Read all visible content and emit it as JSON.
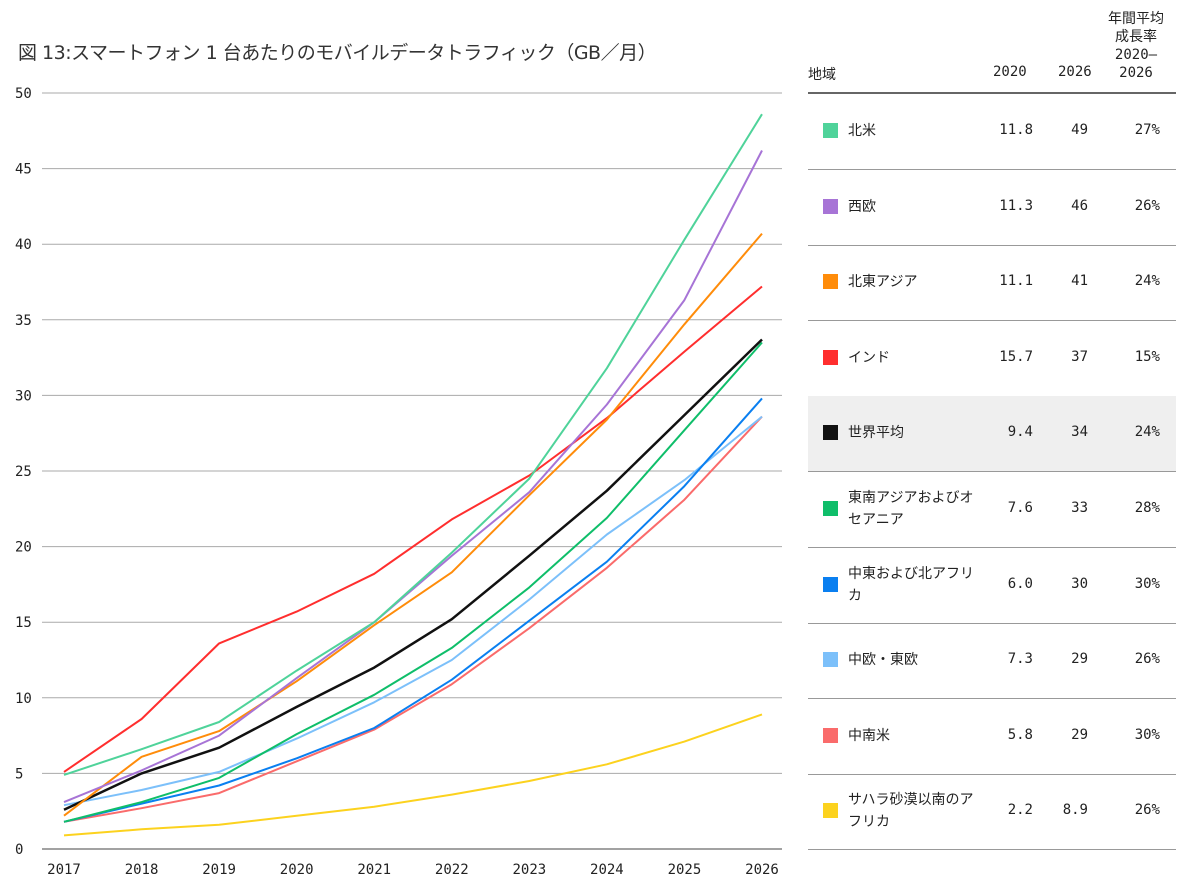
{
  "title": "図 13:スマートフォン 1 台あたりのモバイルデータトラフィック（GB／月）",
  "table": {
    "headers": {
      "region": "地域",
      "y2020": "2020",
      "y2026": "2026",
      "cagr": "年間平均\n成長率\n2020–\n2026"
    },
    "rows": [
      {
        "region": "北米",
        "v2020": "11.8",
        "v2026": "49",
        "cagr": "27%",
        "color": "#4fd39a"
      },
      {
        "region": "西欧",
        "v2020": "11.3",
        "v2026": "46",
        "cagr": "26%",
        "color": "#a774d6"
      },
      {
        "region": "北東アジア",
        "v2020": "11.1",
        "v2026": "41",
        "cagr": "24%",
        "color": "#ff8c0a"
      },
      {
        "region": "インド",
        "v2020": "15.7",
        "v2026": "37",
        "cagr": "15%",
        "color": "#ff2e2e"
      },
      {
        "region": "世界平均",
        "v2020": "9.4",
        "v2026": "34",
        "cagr": "24%",
        "color": "#111111"
      },
      {
        "region": "東南アジアおよびオセアニア",
        "v2020": "7.6",
        "v2026": "33",
        "cagr": "28%",
        "color": "#0fbe6a"
      },
      {
        "region": "中東および北アフリカ",
        "v2020": "6.0",
        "v2026": "30",
        "cagr": "30%",
        "color": "#0a7ff0"
      },
      {
        "region": "中欧・東欧",
        "v2020": "7.3",
        "v2026": "29",
        "cagr": "26%",
        "color": "#7cc0fa"
      },
      {
        "region": "中南米",
        "v2020": "5.8",
        "v2026": "29",
        "cagr": "30%",
        "color": "#fa6b6b"
      },
      {
        "region": "サハラ砂漠以南のアフリカ",
        "v2020": "2.2",
        "v2026": "8.9",
        "cagr": "26%",
        "color": "#fcd21e"
      }
    ]
  },
  "chart_data": {
    "type": "line",
    "title": "図 13:スマートフォン 1 台あたりのモバイルデータトラフィック（GB／月）",
    "x": [
      "2017",
      "2018",
      "2019",
      "2020",
      "2021",
      "2022",
      "2023",
      "2024",
      "2025",
      "2026"
    ],
    "ylim": [
      0,
      50
    ],
    "yticks": [
      "0",
      "5",
      "10",
      "15",
      "20",
      "25",
      "30",
      "35",
      "40",
      "45",
      "50"
    ],
    "grid": true,
    "legend": "right (table)",
    "series": [
      {
        "name": "北米",
        "color": "#4fd39a",
        "values": [
          4.9,
          6.6,
          8.4,
          11.8,
          15.0,
          19.6,
          24.5,
          31.8,
          40.3,
          48.6
        ]
      },
      {
        "name": "西欧",
        "color": "#a774d6",
        "values": [
          3.1,
          5.2,
          7.5,
          11.3,
          15.0,
          19.4,
          23.6,
          29.4,
          36.3,
          46.2
        ]
      },
      {
        "name": "北東アジア",
        "color": "#ff8c0a",
        "values": [
          2.2,
          6.1,
          7.8,
          11.1,
          14.8,
          18.3,
          23.4,
          28.4,
          34.7,
          40.7
        ]
      },
      {
        "name": "インド",
        "color": "#ff2e2e",
        "values": [
          5.1,
          8.6,
          13.6,
          15.7,
          18.2,
          21.8,
          24.7,
          28.5,
          32.9,
          37.2
        ]
      },
      {
        "name": "世界平均",
        "color": "#111111",
        "values": [
          2.6,
          5.0,
          6.7,
          9.4,
          12.0,
          15.2,
          19.4,
          23.7,
          28.7,
          33.7
        ]
      },
      {
        "name": "東南アジアおよびオセアニア",
        "color": "#0fbe6a",
        "values": [
          1.8,
          3.1,
          4.7,
          7.6,
          10.2,
          13.3,
          17.3,
          21.9,
          27.7,
          33.5
        ]
      },
      {
        "name": "中東および北アフリカ",
        "color": "#0a7ff0",
        "values": [
          1.8,
          3.0,
          4.2,
          6.0,
          8.0,
          11.2,
          15.1,
          19.0,
          24.0,
          29.8
        ]
      },
      {
        "name": "中欧・東欧",
        "color": "#7cc0fa",
        "values": [
          2.9,
          3.9,
          5.1,
          7.3,
          9.7,
          12.5,
          16.5,
          20.8,
          24.4,
          28.6
        ]
      },
      {
        "name": "中南米",
        "color": "#fa6b6b",
        "values": [
          1.8,
          2.7,
          3.7,
          5.8,
          7.9,
          10.9,
          14.6,
          18.6,
          23.1,
          28.6
        ]
      },
      {
        "name": "サハラ砂漠以南のアフリカ",
        "color": "#fcd21e",
        "values": [
          0.9,
          1.3,
          1.6,
          2.2,
          2.8,
          3.6,
          4.5,
          5.6,
          7.1,
          8.9
        ]
      }
    ]
  }
}
